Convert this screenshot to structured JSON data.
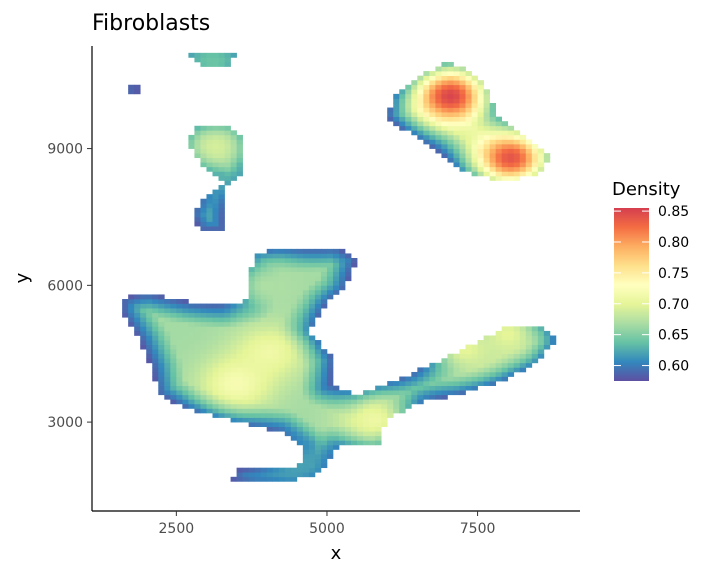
{
  "chart_data": {
    "type": "heatmap",
    "title": "Fibroblasts",
    "xlabel": "x",
    "ylabel": "y",
    "xlim": [
      1100,
      9200
    ],
    "ylim": [
      1050,
      11250
    ],
    "x_ticks": [
      2500,
      5000,
      7500
    ],
    "y_ticks": [
      3000,
      6000,
      9000
    ],
    "grid": false,
    "cell_size": 100,
    "legend": {
      "title": "Density",
      "position": "right",
      "min": 0.575,
      "max": 0.855,
      "ticks": [
        0.6,
        0.65,
        0.7,
        0.75,
        0.8,
        0.85
      ],
      "tick_labels": [
        "0.60",
        "0.65",
        "0.70",
        "0.75",
        "0.80",
        "0.85"
      ]
    },
    "colorscale": [
      "#5e4fa2",
      "#3288bd",
      "#66c2a5",
      "#abdda4",
      "#e6f598",
      "#ffffbf",
      "#fee08b",
      "#fdae61",
      "#f46d43",
      "#d53e4f"
    ],
    "regions": [
      {
        "name": "top-left-fragment",
        "points": [
          [
            1720,
            10400
          ],
          [
            1880,
            10450
          ],
          [
            1850,
            10180
          ],
          [
            1700,
            10150
          ]
        ],
        "peaks": []
      },
      {
        "name": "top-small-blob",
        "points": [
          [
            2650,
            11100
          ],
          [
            3150,
            11120
          ],
          [
            3500,
            11050
          ],
          [
            3300,
            10750
          ],
          [
            2900,
            10850
          ]
        ],
        "peaks": [
          [
            3100,
            10920,
            0.64
          ]
        ]
      },
      {
        "name": "left-column-blob",
        "points": [
          [
            2800,
            9450
          ],
          [
            3400,
            9500
          ],
          [
            3550,
            9300
          ],
          [
            3650,
            8900
          ],
          [
            3600,
            8450
          ],
          [
            3300,
            8200
          ],
          [
            3000,
            7950
          ],
          [
            2750,
            7600
          ],
          [
            2900,
            7200
          ],
          [
            3300,
            7200
          ],
          [
            3250,
            8300
          ],
          [
            2900,
            8700
          ],
          [
            2700,
            9100
          ]
        ],
        "peaks": [
          [
            3150,
            9050,
            0.69
          ],
          [
            3150,
            8500,
            0.63
          ]
        ]
      },
      {
        "name": "top-right-blob",
        "points": [
          [
            6100,
            10100
          ],
          [
            6500,
            10600
          ],
          [
            7000,
            10880
          ],
          [
            7300,
            10800
          ],
          [
            7600,
            10500
          ],
          [
            7800,
            9800
          ],
          [
            8200,
            9400
          ],
          [
            8500,
            9100
          ],
          [
            8700,
            8800
          ],
          [
            8500,
            8400
          ],
          [
            7900,
            8300
          ],
          [
            7300,
            8500
          ],
          [
            6800,
            9000
          ],
          [
            6300,
            9400
          ],
          [
            6000,
            9700
          ]
        ],
        "peaks": [
          [
            7050,
            10150,
            0.85
          ],
          [
            8050,
            8800,
            0.84
          ]
        ]
      },
      {
        "name": "main-blob",
        "points": [
          [
            1600,
            5700
          ],
          [
            2000,
            5850
          ],
          [
            2700,
            5650
          ],
          [
            3300,
            5550
          ],
          [
            3650,
            5650
          ],
          [
            3800,
            6700
          ],
          [
            4200,
            6800
          ],
          [
            4600,
            6800
          ],
          [
            5150,
            6850
          ],
          [
            5500,
            6600
          ],
          [
            5300,
            5900
          ],
          [
            5000,
            5600
          ],
          [
            4700,
            5000
          ],
          [
            5100,
            4400
          ],
          [
            5050,
            3800
          ],
          [
            5500,
            3600
          ],
          [
            6100,
            3900
          ],
          [
            6800,
            4300
          ],
          [
            7400,
            4700
          ],
          [
            8000,
            5100
          ],
          [
            8600,
            5050
          ],
          [
            8800,
            4800
          ],
          [
            8500,
            4300
          ],
          [
            7900,
            3900
          ],
          [
            7200,
            3600
          ],
          [
            6600,
            3450
          ],
          [
            6000,
            3050
          ],
          [
            5850,
            2500
          ],
          [
            5200,
            2450
          ],
          [
            5000,
            2150
          ],
          [
            4900,
            1900
          ],
          [
            4400,
            1700
          ],
          [
            3800,
            1650
          ],
          [
            3400,
            1750
          ],
          [
            3550,
            1950
          ],
          [
            4200,
            2000
          ],
          [
            4550,
            2050
          ],
          [
            4600,
            2450
          ],
          [
            4200,
            2800
          ],
          [
            3500,
            3000
          ],
          [
            2700,
            3300
          ],
          [
            2200,
            3600
          ],
          [
            2100,
            4200
          ],
          [
            1900,
            4800
          ],
          [
            1600,
            5400
          ]
        ],
        "peaks": [
          [
            4050,
            4550,
            0.71
          ],
          [
            3500,
            3850,
            0.72
          ],
          [
            4000,
            6000,
            0.67
          ],
          [
            5800,
            3050,
            0.71
          ],
          [
            7300,
            4600,
            0.7
          ],
          [
            8000,
            4950,
            0.7
          ],
          [
            4500,
            2100,
            0.62
          ]
        ]
      }
    ]
  }
}
